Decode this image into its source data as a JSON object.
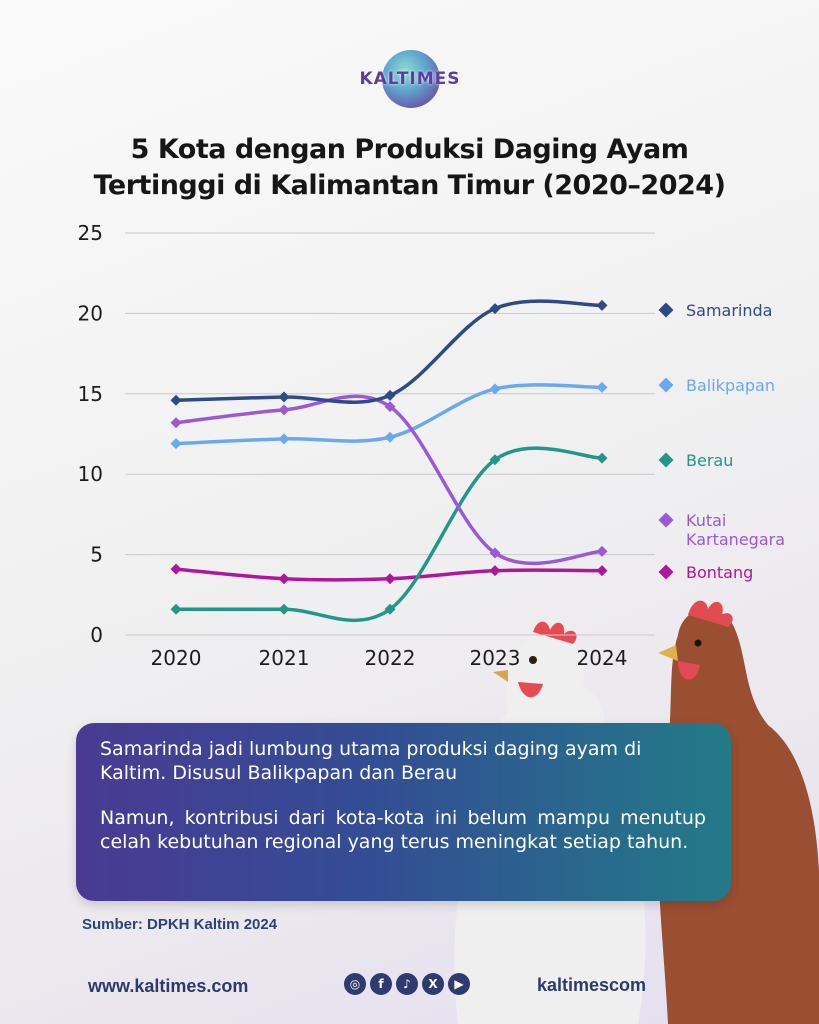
{
  "brand": {
    "logo_text": "KALTIMES"
  },
  "title_line1": "5 Kota dengan Produksi Daging Ayam",
  "title_line2": "Tertinggi di Kalimantan Timur (2020–2024)",
  "chart_data": {
    "type": "line",
    "x": [
      "2020",
      "2021",
      "2022",
      "2023",
      "2024"
    ],
    "ylim": [
      0,
      25
    ],
    "yticks": [
      "0",
      "5",
      "10",
      "15",
      "20",
      "25"
    ],
    "grid": true,
    "legend_position": "right",
    "series": [
      {
        "name": "Samarinda",
        "color": "#2e4a87",
        "values": [
          14.6,
          14.8,
          14.9,
          20.3,
          20.5
        ]
      },
      {
        "name": "Balikpapan",
        "color": "#6aa9f0",
        "values": [
          11.9,
          12.2,
          12.3,
          15.3,
          15.4
        ]
      },
      {
        "name": "Berau",
        "color": "#23968a",
        "values": [
          1.6,
          1.6,
          1.6,
          10.9,
          11.0
        ]
      },
      {
        "name": "Kutai Kartanegara",
        "name_lines": [
          "Kutai",
          "Kartanegara"
        ],
        "color": "#9b59d6",
        "values": [
          13.2,
          14.0,
          14.2,
          5.1,
          5.2
        ]
      },
      {
        "name": "Bontang",
        "color": "#b0169a",
        "values": [
          4.1,
          3.5,
          3.5,
          4.0,
          4.0
        ]
      }
    ]
  },
  "info": {
    "p1": "Samarinda jadi lumbung utama produksi daging ayam di Kaltim. Disusul Balikpapan dan Berau",
    "p2": "Namun, kontribusi dari kota-kota ini belum mampu menutup celah kebutuhan regional yang terus meningkat setiap tahun."
  },
  "source": "Sumber: DPKH Kaltim 2024",
  "footer": {
    "website": "www.kaltimes.com",
    "handle": "kaltimescom",
    "social_icons": [
      "instagram-icon",
      "facebook-icon",
      "tiktok-icon",
      "x-icon",
      "youtube-icon"
    ]
  }
}
